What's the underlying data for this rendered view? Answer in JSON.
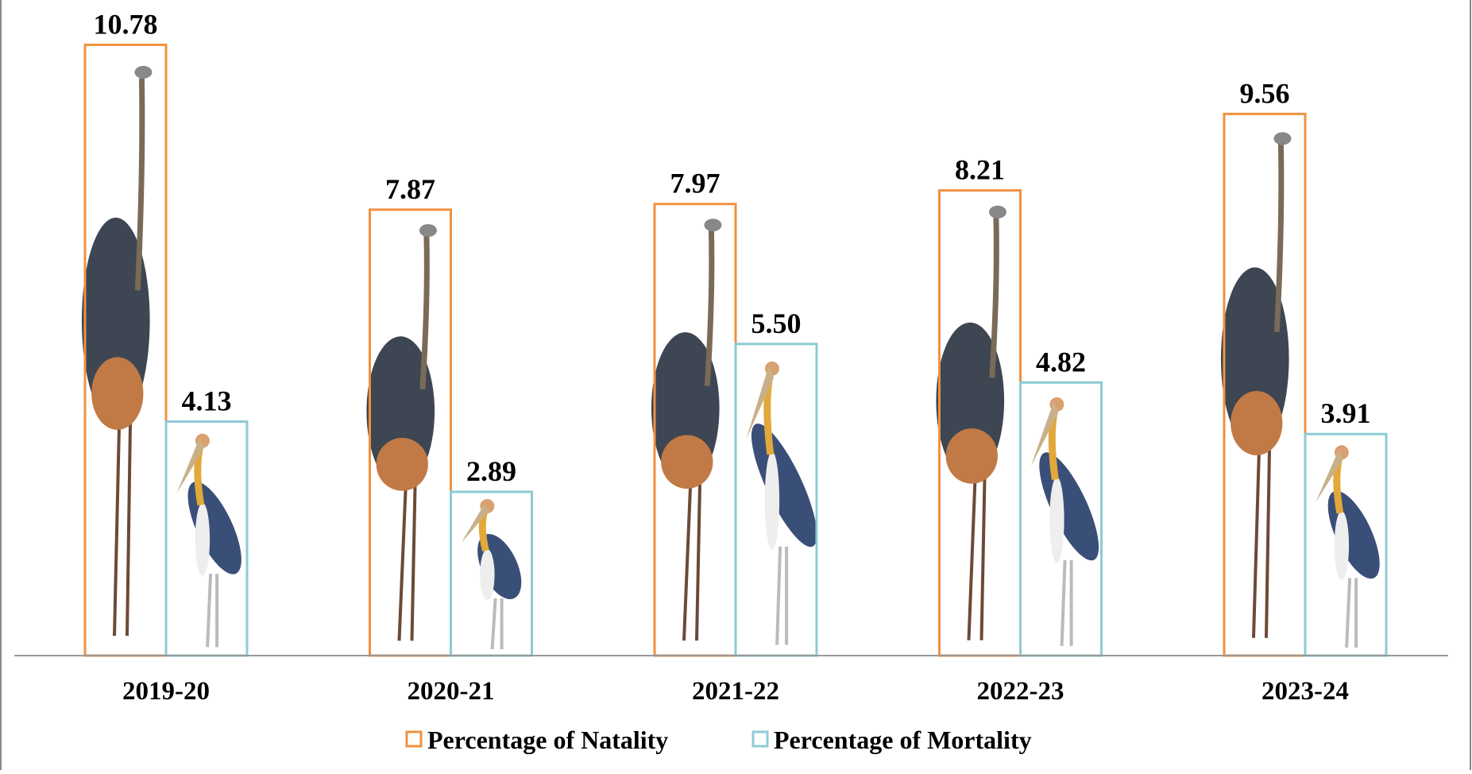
{
  "chart_data": {
    "type": "bar",
    "categories": [
      "2019-20",
      "2020-21",
      "2021-22",
      "2022-23",
      "2023-24"
    ],
    "series": [
      {
        "name": "Percentage of Natality",
        "color": "#f0913f",
        "values": [
          10.78,
          7.87,
          7.97,
          8.21,
          9.56
        ]
      },
      {
        "name": "Percentage of Mortality",
        "color": "#8ccbd6",
        "values": [
          4.13,
          2.89,
          5.5,
          4.82,
          3.91
        ],
        "value_labels": [
          "4.13",
          "2.89",
          "5.50",
          "4.82",
          "3.91"
        ]
      }
    ]
  }
}
